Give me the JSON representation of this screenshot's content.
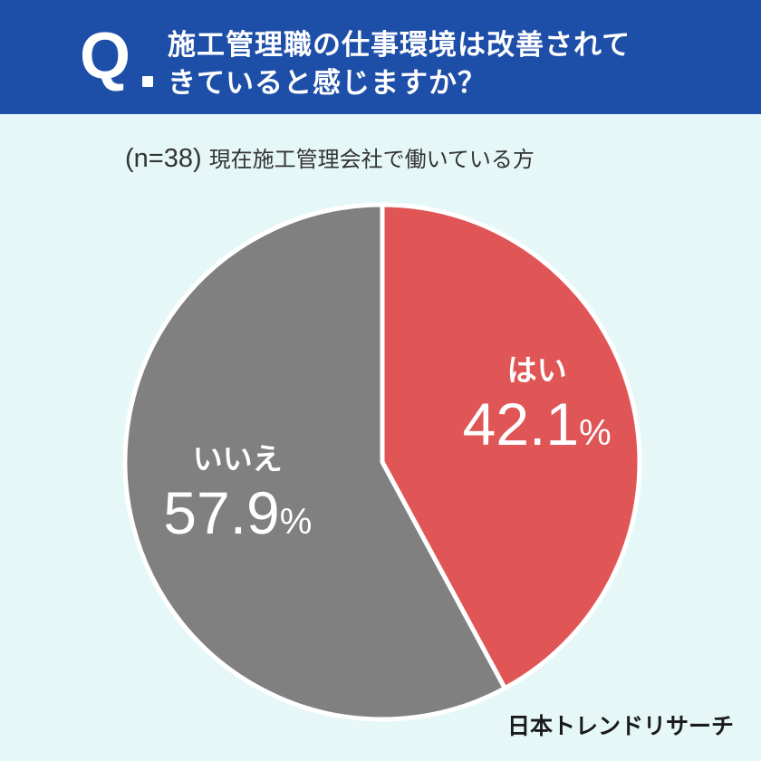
{
  "header": {
    "q_mark": "Q",
    "question_line1": "施工管理職の仕事環境は改善されて",
    "question_line2": "きていると感じますか？"
  },
  "subtitle": {
    "n": "(n=38)",
    "description": "現在施工管理会社で働いている方"
  },
  "chart_data": {
    "type": "pie",
    "title": "施工管理職の仕事環境は改善されてきていると感じますか？",
    "slices": [
      {
        "label": "はい",
        "value": 42.1,
        "display": "42.1",
        "color": "#e05656"
      },
      {
        "label": "いいえ",
        "value": 57.9,
        "display": "57.9",
        "color": "#808080"
      }
    ],
    "unit": "%",
    "start_angle_deg": 0,
    "direction": "clockwise"
  },
  "footer": {
    "brand": "日本トレンドリサーチ"
  }
}
